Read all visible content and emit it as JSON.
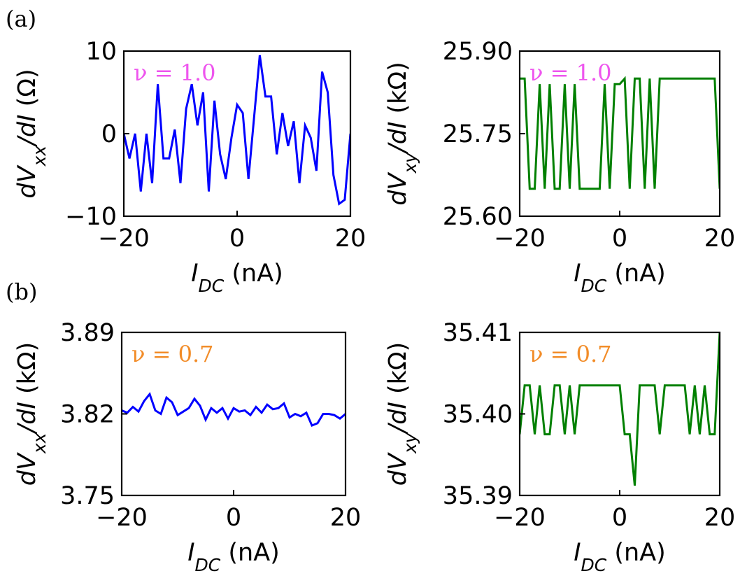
{
  "panel_labels": [
    "(a)",
    "(b)"
  ],
  "chart_data": [
    {
      "id": "a-left",
      "type": "line",
      "color": "#0000ff",
      "title": "",
      "annotation": {
        "text": "ν = 1.0",
        "color": "#ee55ee"
      },
      "xlabel": {
        "sym": "I",
        "sub": "DC",
        "unit": " (nA)"
      },
      "ylabel": {
        "pre": "dV",
        "sub": "xx",
        "post": "/dI",
        "unit": " (Ω)"
      },
      "xlim": [
        -20,
        20
      ],
      "ylim": [
        -10,
        10
      ],
      "xticks": [
        -20,
        0,
        20
      ],
      "xtick_labels": [
        "−20",
        "0",
        "20"
      ],
      "yticks": [
        -10,
        0,
        10
      ],
      "ytick_labels": [
        "−10",
        "0",
        "10"
      ],
      "x": [
        -20,
        -19,
        -18,
        -17,
        -16,
        -15,
        -14,
        -13,
        -12,
        -11,
        -10,
        -9,
        -8,
        -7,
        -6,
        -5,
        -4,
        -3,
        -2,
        -1,
        0,
        1,
        2,
        3,
        4,
        5,
        6,
        7,
        8,
        9,
        10,
        11,
        12,
        13,
        14,
        15,
        16,
        17,
        18,
        19,
        20
      ],
      "y": [
        0,
        -3,
        0,
        -7,
        0,
        -6,
        6,
        -3,
        -3,
        0.5,
        -6,
        3,
        6,
        1,
        5,
        -7,
        4,
        -2.5,
        -5.5,
        -0.5,
        3.5,
        2.5,
        -5.5,
        2,
        9.5,
        4.5,
        4.5,
        -2.5,
        2.5,
        -1.5,
        1.5,
        -6,
        1,
        -0.5,
        -4.5,
        7.5,
        5,
        -5,
        -8.5,
        -8,
        0
      ]
    },
    {
      "id": "a-right",
      "type": "line",
      "color": "#008000",
      "title": "",
      "annotation": {
        "text": "ν = 1.0",
        "color": "#ee55ee"
      },
      "xlabel": {
        "sym": "I",
        "sub": "DC",
        "unit": " (nA)"
      },
      "ylabel": {
        "pre": "dV",
        "sub": "xy",
        "post": "/dI",
        "unit": " (kΩ)"
      },
      "xlim": [
        -20,
        20
      ],
      "ylim": [
        25.6,
        25.9
      ],
      "xticks": [
        -20,
        0,
        20
      ],
      "xtick_labels": [
        "−20",
        "0",
        "20"
      ],
      "yticks": [
        25.6,
        25.75,
        25.9
      ],
      "ytick_labels": [
        "25.60",
        "25.75",
        "25.90"
      ],
      "x": [
        -20,
        -19,
        -18,
        -17,
        -16,
        -15,
        -14,
        -13,
        -12,
        -11,
        -10,
        -9,
        -8,
        -7,
        -6,
        -5,
        -4,
        -3,
        -2,
        -1,
        0,
        1,
        2,
        3,
        4,
        5,
        6,
        7,
        8,
        9,
        10,
        11,
        12,
        13,
        14,
        15,
        16,
        17,
        18,
        19,
        20
      ],
      "y": [
        25.85,
        25.85,
        25.65,
        25.65,
        25.84,
        25.65,
        25.84,
        25.65,
        25.65,
        25.84,
        25.65,
        25.84,
        25.65,
        25.65,
        25.65,
        25.65,
        25.65,
        25.84,
        25.65,
        25.84,
        25.84,
        25.85,
        25.65,
        25.85,
        25.85,
        25.65,
        25.85,
        25.65,
        25.85,
        25.85,
        25.85,
        25.85,
        25.85,
        25.85,
        25.85,
        25.85,
        25.85,
        25.85,
        25.85,
        25.85,
        25.65
      ]
    },
    {
      "id": "b-left",
      "type": "line",
      "color": "#0000ff",
      "title": "",
      "annotation": {
        "text": "ν = 0.7",
        "color": "#f28c28"
      },
      "xlabel": {
        "sym": "I",
        "sub": "DC",
        "unit": " (nA)"
      },
      "ylabel": {
        "pre": "dV",
        "sub": "xx",
        "post": "/dI",
        "unit": " (kΩ)"
      },
      "xlim": [
        -20,
        20
      ],
      "ylim": [
        3.75,
        3.89
      ],
      "xticks": [
        -20,
        0,
        20
      ],
      "xtick_labels": [
        "−20",
        "0",
        "20"
      ],
      "yticks": [
        3.75,
        3.82,
        3.89
      ],
      "ytick_labels": [
        "3.75",
        "3.82",
        "3.89"
      ],
      "x": [
        -20,
        -19,
        -18,
        -17,
        -16,
        -15,
        -14,
        -13,
        -12,
        -11,
        -10,
        -9,
        -8,
        -7,
        -6,
        -5,
        -4,
        -3,
        -2,
        -1,
        0,
        1,
        2,
        3,
        4,
        5,
        6,
        7,
        8,
        9,
        10,
        11,
        12,
        13,
        14,
        15,
        16,
        17,
        18,
        19,
        20
      ],
      "y": [
        3.823,
        3.821,
        3.826,
        3.822,
        3.831,
        3.837,
        3.823,
        3.82,
        3.834,
        3.83,
        3.819,
        3.822,
        3.825,
        3.833,
        3.827,
        3.815,
        3.825,
        3.821,
        3.825,
        3.816,
        3.825,
        3.822,
        3.823,
        3.819,
        3.826,
        3.821,
        3.828,
        3.824,
        3.825,
        3.829,
        3.817,
        3.82,
        3.818,
        3.821,
        3.81,
        3.812,
        3.82,
        3.82,
        3.819,
        3.816,
        3.82
      ]
    },
    {
      "id": "b-right",
      "type": "line",
      "color": "#008000",
      "title": "",
      "annotation": {
        "text": "ν = 0.7",
        "color": "#f28c28"
      },
      "xlabel": {
        "sym": "I",
        "sub": "DC",
        "unit": " (nA)"
      },
      "ylabel": {
        "pre": "dV",
        "sub": "xy",
        "post": "/dI",
        "unit": " (kΩ)"
      },
      "xlim": [
        -20,
        20
      ],
      "ylim": [
        35.39,
        35.41
      ],
      "xticks": [
        -20,
        0,
        20
      ],
      "xtick_labels": [
        "−20",
        "0",
        "20"
      ],
      "yticks": [
        35.39,
        35.4,
        35.41
      ],
      "ytick_labels": [
        "35.39",
        "35.40",
        "35.41"
      ],
      "x": [
        -20,
        -19,
        -18,
        -17,
        -16,
        -15,
        -14,
        -13,
        -12,
        -11,
        -10,
        -9,
        -8,
        -7,
        -6,
        -5,
        -4,
        -3,
        -2,
        -1,
        0,
        1,
        2,
        3,
        4,
        5,
        6,
        7,
        8,
        9,
        10,
        11,
        12,
        13,
        14,
        15,
        16,
        17,
        18,
        19,
        20
      ],
      "y": [
        35.3975,
        35.4035,
        35.4035,
        35.3975,
        35.4035,
        35.3975,
        35.3975,
        35.4035,
        35.4035,
        35.3975,
        35.4035,
        35.3975,
        35.4035,
        35.4035,
        35.4035,
        35.4035,
        35.4035,
        35.4035,
        35.4035,
        35.4035,
        35.4035,
        35.3975,
        35.3975,
        35.3912,
        35.4035,
        35.4035,
        35.4035,
        35.4035,
        35.3975,
        35.4035,
        35.4035,
        35.4035,
        35.4035,
        35.4035,
        35.3975,
        35.4035,
        35.3975,
        35.4035,
        35.3975,
        35.3975,
        35.41
      ]
    }
  ]
}
